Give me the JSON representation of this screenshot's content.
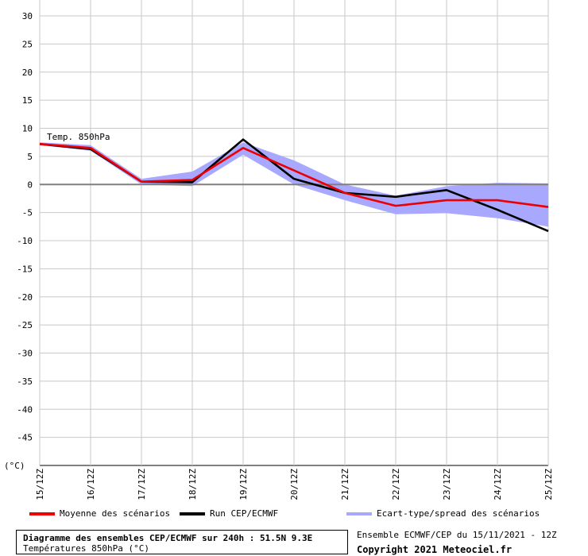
{
  "chart_data": {
    "type": "line",
    "title": "Diagramme des ensembles CEP/ECMWF sur 240h : 51.5N 9.3E",
    "subtitle": "Températures 850hPa (°C)",
    "ylabel": "(°C)",
    "series_annotation": "Temp. 850hPa",
    "ylim": [
      -50,
      30
    ],
    "yticks": [
      30,
      25,
      20,
      15,
      10,
      5,
      0,
      -5,
      -10,
      -15,
      -20,
      -25,
      -30,
      -35,
      -40,
      -45
    ],
    "x": [
      "15/12Z",
      "16/12Z",
      "17/12Z",
      "18/12Z",
      "19/12Z",
      "20/12Z",
      "21/12Z",
      "22/12Z",
      "23/12Z",
      "24/12Z",
      "25/12Z"
    ],
    "grid": true,
    "series": [
      {
        "name": "Moyenne des scénarios",
        "color": "#ee0000",
        "values": [
          7.2,
          6.5,
          0.5,
          0.8,
          6.5,
          2.5,
          -1.5,
          -3.8,
          -2.8,
          -2.8,
          -4.0
        ]
      },
      {
        "name": "Run CEP/ECMWF",
        "color": "#000000",
        "values": [
          7.2,
          6.3,
          0.5,
          0.4,
          8.0,
          1.0,
          -1.5,
          -2.2,
          -1.0,
          -4.5,
          -8.3
        ]
      }
    ],
    "band": {
      "name": "Ecart-type/spread des scénarios",
      "color": "#a8a8ff",
      "upper": [
        7.5,
        7.0,
        1.0,
        2.3,
        7.5,
        4.3,
        0.0,
        -2.0,
        -0.3,
        0.3,
        0.2
      ],
      "lower": [
        7.0,
        6.0,
        0.0,
        -0.3,
        5.3,
        0.0,
        -2.8,
        -5.3,
        -5.1,
        -6.0,
        -7.5
      ]
    }
  },
  "footer": {
    "ensemble_info": "Ensemble ECMWF/CEP du 15/11/2021 - 12Z",
    "copyright": "Copyright 2021 Meteociel.fr"
  }
}
